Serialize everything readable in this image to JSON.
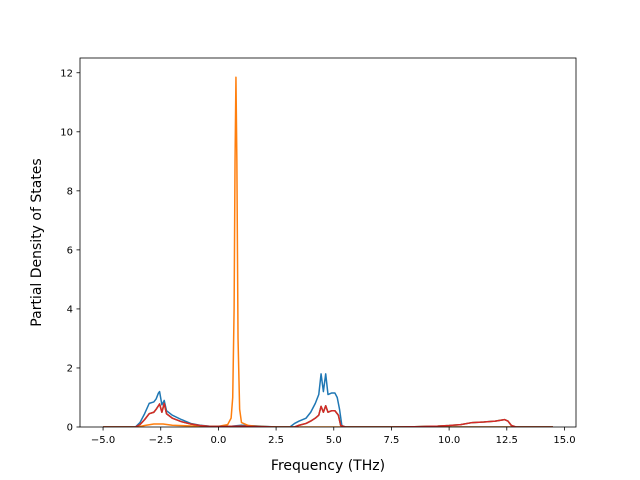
{
  "chart_data": {
    "type": "line",
    "title": "",
    "xlabel": "Frequency (THz)",
    "ylabel": "Partial Density of States",
    "xlim": [
      -6.0,
      15.5
    ],
    "ylim": [
      0,
      12.5
    ],
    "xticks": [
      -5.0,
      -2.5,
      0.0,
      2.5,
      5.0,
      7.5,
      10.0,
      12.5,
      15.0
    ],
    "xtick_labels": [
      "−5.0",
      "−2.5",
      "0.0",
      "2.5",
      "5.0",
      "7.5",
      "10.0",
      "12.5",
      "15.0"
    ],
    "yticks": [
      0,
      2,
      4,
      6,
      8,
      10,
      12
    ],
    "ytick_labels": [
      "0",
      "2",
      "4",
      "6",
      "8",
      "10",
      "12"
    ],
    "grid": false,
    "legend": "none",
    "series": [
      {
        "color": "#1f77b4",
        "points": [
          [
            -5.0,
            0
          ],
          [
            -3.6,
            0
          ],
          [
            -3.4,
            0.15
          ],
          [
            -3.2,
            0.45
          ],
          [
            -3.0,
            0.8
          ],
          [
            -2.8,
            0.85
          ],
          [
            -2.7,
            0.95
          ],
          [
            -2.6,
            1.15
          ],
          [
            -2.55,
            1.2
          ],
          [
            -2.45,
            0.75
          ],
          [
            -2.35,
            0.9
          ],
          [
            -2.25,
            0.55
          ],
          [
            -2.0,
            0.4
          ],
          [
            -1.6,
            0.25
          ],
          [
            -1.2,
            0.12
          ],
          [
            -0.8,
            0.06
          ],
          [
            -0.4,
            0.03
          ],
          [
            0.2,
            0.02
          ],
          [
            0.6,
            0.03
          ],
          [
            1.0,
            0.06
          ],
          [
            1.5,
            0.04
          ],
          [
            2.0,
            0.02
          ],
          [
            2.5,
            0.0
          ],
          [
            3.1,
            0.0
          ],
          [
            3.3,
            0.12
          ],
          [
            3.5,
            0.2
          ],
          [
            3.8,
            0.3
          ],
          [
            4.0,
            0.5
          ],
          [
            4.2,
            0.8
          ],
          [
            4.35,
            1.1
          ],
          [
            4.45,
            1.8
          ],
          [
            4.55,
            1.2
          ],
          [
            4.65,
            1.8
          ],
          [
            4.75,
            1.1
          ],
          [
            4.9,
            1.15
          ],
          [
            5.05,
            1.15
          ],
          [
            5.15,
            1.0
          ],
          [
            5.25,
            0.6
          ],
          [
            5.35,
            0.05
          ],
          [
            5.5,
            0
          ],
          [
            14.5,
            0
          ]
        ]
      },
      {
        "color": "#ff7f0e",
        "points": [
          [
            -5.0,
            0
          ],
          [
            -3.5,
            0
          ],
          [
            -3.2,
            0.05
          ],
          [
            -2.8,
            0.1
          ],
          [
            -2.4,
            0.1
          ],
          [
            -2.0,
            0.06
          ],
          [
            -1.0,
            0.03
          ],
          [
            0.0,
            0.02
          ],
          [
            0.4,
            0.08
          ],
          [
            0.55,
            0.3
          ],
          [
            0.62,
            1.0
          ],
          [
            0.68,
            4.0
          ],
          [
            0.72,
            9.0
          ],
          [
            0.76,
            11.85
          ],
          [
            0.8,
            9.0
          ],
          [
            0.85,
            3.0
          ],
          [
            0.92,
            0.6
          ],
          [
            1.0,
            0.15
          ],
          [
            1.3,
            0.05
          ],
          [
            1.8,
            0.02
          ],
          [
            2.5,
            0
          ],
          [
            14.5,
            0
          ]
        ]
      },
      {
        "color": "#2ca02c",
        "points": [
          [
            -5.0,
            0
          ],
          [
            -3.6,
            0
          ],
          [
            -3.4,
            0.08
          ],
          [
            -3.2,
            0.25
          ],
          [
            -3.0,
            0.45
          ],
          [
            -2.8,
            0.5
          ],
          [
            -2.7,
            0.6
          ],
          [
            -2.6,
            0.72
          ],
          [
            -2.55,
            0.78
          ],
          [
            -2.45,
            0.5
          ],
          [
            -2.35,
            0.8
          ],
          [
            -2.25,
            0.45
          ],
          [
            -2.0,
            0.3
          ],
          [
            -1.6,
            0.18
          ],
          [
            -1.2,
            0.1
          ],
          [
            -0.8,
            0.05
          ],
          [
            -0.4,
            0.02
          ],
          [
            0.4,
            0.02
          ],
          [
            1.0,
            0.03
          ],
          [
            1.5,
            0.02
          ],
          [
            2.0,
            0.01
          ],
          [
            2.5,
            0
          ],
          [
            3.3,
            0
          ],
          [
            3.5,
            0.06
          ],
          [
            3.8,
            0.12
          ],
          [
            4.0,
            0.2
          ],
          [
            4.2,
            0.3
          ],
          [
            4.35,
            0.4
          ],
          [
            4.45,
            0.7
          ],
          [
            4.55,
            0.5
          ],
          [
            4.65,
            0.72
          ],
          [
            4.75,
            0.5
          ],
          [
            4.9,
            0.55
          ],
          [
            5.05,
            0.55
          ],
          [
            5.2,
            0.4
          ],
          [
            5.3,
            0.05
          ],
          [
            5.5,
            0
          ],
          [
            7.5,
            0
          ],
          [
            8.5,
            0.01
          ],
          [
            9.0,
            0.02
          ],
          [
            9.5,
            0.03
          ],
          [
            10.0,
            0.05
          ],
          [
            10.5,
            0.08
          ],
          [
            11.0,
            0.15
          ],
          [
            11.5,
            0.17
          ],
          [
            12.0,
            0.2
          ],
          [
            12.4,
            0.25
          ],
          [
            12.55,
            0.2
          ],
          [
            12.7,
            0.05
          ],
          [
            12.9,
            0
          ],
          [
            14.5,
            0
          ]
        ]
      },
      {
        "color": "#d62728",
        "points": [
          [
            -5.0,
            0
          ],
          [
            -3.6,
            0
          ],
          [
            -3.4,
            0.08
          ],
          [
            -3.2,
            0.25
          ],
          [
            -3.0,
            0.45
          ],
          [
            -2.8,
            0.5
          ],
          [
            -2.7,
            0.6
          ],
          [
            -2.6,
            0.72
          ],
          [
            -2.55,
            0.78
          ],
          [
            -2.45,
            0.5
          ],
          [
            -2.35,
            0.8
          ],
          [
            -2.25,
            0.45
          ],
          [
            -2.0,
            0.3
          ],
          [
            -1.6,
            0.18
          ],
          [
            -1.2,
            0.1
          ],
          [
            -0.8,
            0.05
          ],
          [
            -0.4,
            0.02
          ],
          [
            0.4,
            0.02
          ],
          [
            1.0,
            0.03
          ],
          [
            1.5,
            0.02
          ],
          [
            2.0,
            0.01
          ],
          [
            2.5,
            0
          ],
          [
            3.3,
            0
          ],
          [
            3.5,
            0.06
          ],
          [
            3.8,
            0.12
          ],
          [
            4.0,
            0.2
          ],
          [
            4.2,
            0.3
          ],
          [
            4.35,
            0.4
          ],
          [
            4.45,
            0.7
          ],
          [
            4.55,
            0.5
          ],
          [
            4.65,
            0.72
          ],
          [
            4.75,
            0.5
          ],
          [
            4.9,
            0.55
          ],
          [
            5.05,
            0.55
          ],
          [
            5.2,
            0.4
          ],
          [
            5.3,
            0.05
          ],
          [
            5.5,
            0
          ],
          [
            7.5,
            0
          ],
          [
            8.5,
            0.01
          ],
          [
            9.0,
            0.02
          ],
          [
            9.5,
            0.03
          ],
          [
            10.0,
            0.05
          ],
          [
            10.5,
            0.08
          ],
          [
            11.0,
            0.15
          ],
          [
            11.5,
            0.17
          ],
          [
            12.0,
            0.2
          ],
          [
            12.4,
            0.25
          ],
          [
            12.55,
            0.2
          ],
          [
            12.7,
            0.05
          ],
          [
            12.9,
            0
          ],
          [
            14.5,
            0
          ]
        ]
      }
    ]
  }
}
